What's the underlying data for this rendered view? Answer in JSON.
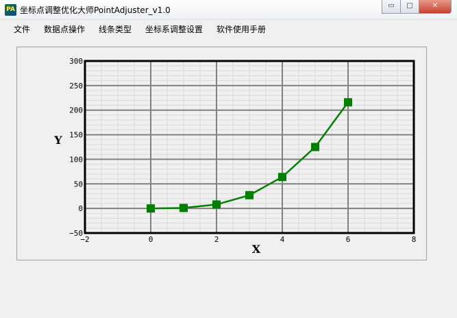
{
  "window": {
    "title": "坐标点调整优化大师PointAdjuster_v1.0",
    "icon_text": "PA",
    "buttons": [
      "minimize-icon",
      "maximize-icon",
      "close-icon"
    ]
  },
  "menu": [
    "文件",
    "数据点操作",
    "线条类型",
    "坐标系调整设置",
    "软件使用手册"
  ],
  "chart_data": {
    "type": "line",
    "title": "",
    "xlabel": "X",
    "ylabel": "Y",
    "xlim": [
      -2,
      8
    ],
    "ylim": [
      -50,
      300
    ],
    "xticks": [
      -2,
      0,
      2,
      4,
      6,
      8
    ],
    "yticks": [
      -50,
      0,
      50,
      100,
      150,
      200,
      250,
      300
    ],
    "grid": true,
    "x": [
      0,
      1,
      2,
      3,
      4,
      5,
      6
    ],
    "values": [
      0,
      1,
      8,
      27,
      64,
      125,
      216
    ],
    "marker": "square",
    "color": "#008000"
  }
}
